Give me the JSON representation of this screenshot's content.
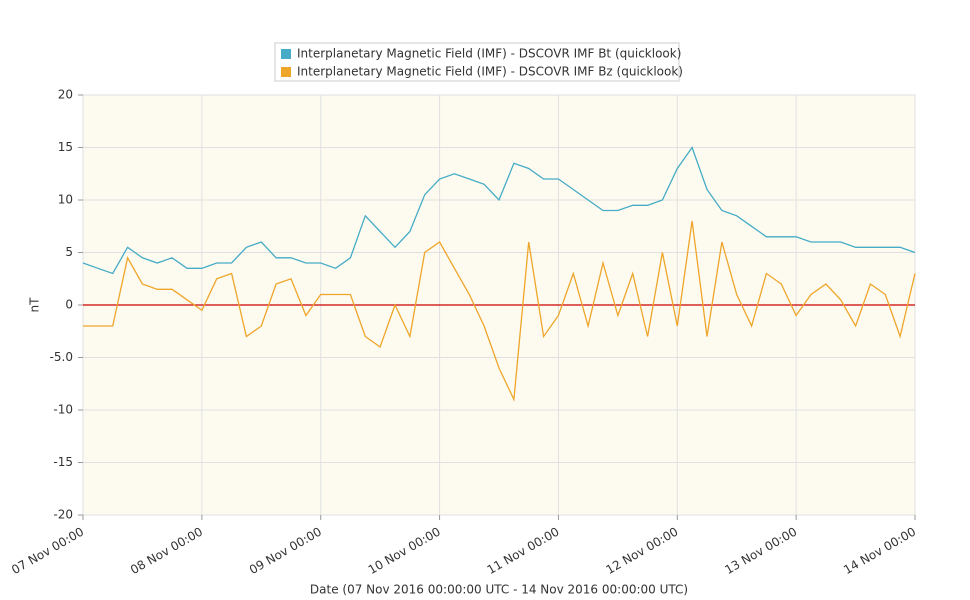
{
  "chart_data": {
    "type": "line",
    "x_title": "Date (07 Nov 2016 00:00:00 UTC - 14 Nov 2016 00:00:00 UTC)",
    "y_title": "nT",
    "x": [
      "2016-11-07T00:00",
      "2016-11-07T03:00",
      "2016-11-07T06:00",
      "2016-11-07T09:00",
      "2016-11-07T12:00",
      "2016-11-07T15:00",
      "2016-11-07T18:00",
      "2016-11-07T21:00",
      "2016-11-08T00:00",
      "2016-11-08T03:00",
      "2016-11-08T06:00",
      "2016-11-08T09:00",
      "2016-11-08T12:00",
      "2016-11-08T15:00",
      "2016-11-08T18:00",
      "2016-11-08T21:00",
      "2016-11-09T00:00",
      "2016-11-09T03:00",
      "2016-11-09T06:00",
      "2016-11-09T09:00",
      "2016-11-09T12:00",
      "2016-11-09T15:00",
      "2016-11-09T18:00",
      "2016-11-09T21:00",
      "2016-11-10T00:00",
      "2016-11-10T03:00",
      "2016-11-10T06:00",
      "2016-11-10T09:00",
      "2016-11-10T12:00",
      "2016-11-10T15:00",
      "2016-11-10T18:00",
      "2016-11-10T21:00",
      "2016-11-11T00:00",
      "2016-11-11T03:00",
      "2016-11-11T06:00",
      "2016-11-11T09:00",
      "2016-11-11T12:00",
      "2016-11-11T15:00",
      "2016-11-11T18:00",
      "2016-11-11T21:00",
      "2016-11-12T00:00",
      "2016-11-12T03:00",
      "2016-11-12T06:00",
      "2016-11-12T09:00",
      "2016-11-12T12:00",
      "2016-11-12T15:00",
      "2016-11-12T18:00",
      "2016-11-12T21:00",
      "2016-11-13T00:00",
      "2016-11-13T03:00",
      "2016-11-13T06:00",
      "2016-11-13T09:00",
      "2016-11-13T12:00",
      "2016-11-13T15:00",
      "2016-11-13T18:00",
      "2016-11-13T21:00",
      "2016-11-14T00:00"
    ],
    "series": [
      {
        "name": "Interplanetary Magnetic Field (IMF) - DSCOVR IMF Bt (quicklook)",
        "color": "#45abc6",
        "values": [
          4,
          3.5,
          3,
          5.5,
          4.5,
          4,
          4.5,
          3.5,
          3.5,
          4,
          4,
          5.5,
          6,
          4.5,
          4.5,
          4,
          4,
          3.5,
          4.5,
          8.5,
          7,
          5.5,
          7,
          10.5,
          12,
          12.5,
          12,
          11.5,
          10,
          13.5,
          13,
          12,
          12,
          11,
          10,
          9,
          9,
          9.5,
          9.5,
          10,
          13,
          15,
          11,
          9,
          8.5,
          7.5,
          6.5,
          6.5,
          6.5,
          6,
          6,
          6,
          5.5,
          5.5,
          5.5,
          5.5,
          5
        ]
      },
      {
        "name": "Interplanetary Magnetic Field (IMF) - DSCOVR IMF Bz (quicklook)",
        "color": "#eea52a",
        "values": [
          -2,
          -2,
          -2,
          4.5,
          2,
          1.5,
          1.5,
          0.5,
          -0.5,
          2.5,
          3,
          -3,
          -2,
          2,
          2.5,
          -1,
          1,
          1,
          1,
          -3,
          -4,
          0,
          -3,
          5,
          6,
          3.5,
          1,
          -2,
          -6,
          -9,
          6,
          -3,
          -1,
          3,
          -2,
          4,
          -1,
          3,
          -3,
          5,
          -2,
          8,
          -3,
          6,
          1,
          -2,
          3,
          2,
          -1,
          1,
          2,
          0.5,
          -2,
          2,
          1,
          -3,
          3
        ]
      }
    ],
    "xlim": [
      "2016-11-07T00:00",
      "2016-11-14T00:00"
    ],
    "xticks": [
      {
        "value": "2016-11-07T00:00",
        "label": "07 Nov 00:00"
      },
      {
        "value": "2016-11-08T00:00",
        "label": "08 Nov 00:00"
      },
      {
        "value": "2016-11-09T00:00",
        "label": "09 Nov 00:00"
      },
      {
        "value": "2016-11-10T00:00",
        "label": "10 Nov 00:00"
      },
      {
        "value": "2016-11-11T00:00",
        "label": "11 Nov 00:00"
      },
      {
        "value": "2016-11-12T00:00",
        "label": "12 Nov 00:00"
      },
      {
        "value": "2016-11-13T00:00",
        "label": "13 Nov 00:00"
      },
      {
        "value": "2016-11-14T00:00",
        "label": "14 Nov 00:00"
      }
    ],
    "ylim": [
      -20,
      20
    ],
    "yticks": [
      -20,
      -15,
      -10,
      {
        "value": -5,
        "label": "-5.0"
      },
      0,
      5,
      10,
      15,
      20
    ],
    "grid": true,
    "zero_line_color": "#cc0000",
    "legend": "top"
  }
}
